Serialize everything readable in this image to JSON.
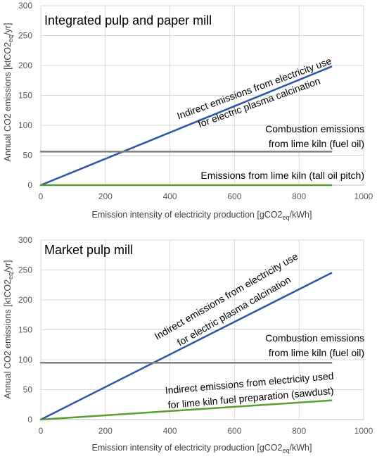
{
  "chart_data": [
    {
      "type": "line",
      "title": "Integrated pulp and paper mill",
      "xlabel_main": "Emission intensity of electricity production [gCO2",
      "xlabel_sub": "eq",
      "xlabel_tail": "/kWh]",
      "ylabel_main": "Annual CO2 emissions [ktCO2",
      "ylabel_sub": "eq",
      "ylabel_tail": "/yr]",
      "xlim": [
        0,
        1000
      ],
      "ylim": [
        0,
        300
      ],
      "xticks": [
        "0",
        "200",
        "400",
        "600",
        "800",
        "1000"
      ],
      "yticks": [
        "0",
        "50",
        "100",
        "150",
        "200",
        "250",
        "300"
      ],
      "grid": true,
      "series": [
        {
          "color": "#2f55a4",
          "x": [
            0,
            900
          ],
          "y": [
            0,
            198
          ]
        },
        {
          "color": "#7f7f7f",
          "x": [
            0,
            900
          ],
          "y": [
            56,
            56
          ]
        },
        {
          "color": "#5a9e32",
          "x": [
            0,
            900
          ],
          "y": [
            0,
            0
          ]
        }
      ],
      "annotations": {
        "electric": [
          "Indirect emissions from electricity use",
          "for electric plasma calcination"
        ],
        "fuel_oil": [
          "Combustion emissions",
          "from lime kiln (fuel oil)"
        ],
        "tall_oil": [
          "Emissions from lime kiln (tall oil pitch)"
        ]
      }
    },
    {
      "type": "line",
      "title": "Market pulp mill",
      "xlabel_main": "Emission intensity of electricity production [gCO2",
      "xlabel_sub": "eq",
      "xlabel_tail": "/kWh]",
      "ylabel_main": "Annual CO2 emissions [ktCO2",
      "ylabel_sub": "eq",
      "ylabel_tail": "/yr]",
      "xlim": [
        0,
        1000
      ],
      "ylim": [
        0,
        300
      ],
      "xticks": [
        "0",
        "200",
        "400",
        "600",
        "800",
        "1000"
      ],
      "yticks": [
        "0",
        "50",
        "100",
        "150",
        "200",
        "250",
        "300"
      ],
      "grid": true,
      "series": [
        {
          "color": "#2f55a4",
          "x": [
            0,
            900
          ],
          "y": [
            0,
            245
          ]
        },
        {
          "color": "#7f7f7f",
          "x": [
            0,
            900
          ],
          "y": [
            95,
            95
          ]
        },
        {
          "color": "#5a9e32",
          "x": [
            0,
            900
          ],
          "y": [
            0,
            32
          ]
        }
      ],
      "annotations": {
        "electric": [
          "Indirect emissions from electricity use",
          "for electric plasma calcination"
        ],
        "fuel_oil": [
          "Combustion emissions",
          "from lime kiln (fuel oil)"
        ],
        "sawdust": [
          "Indirect emissions from electricity used",
          "for lime kiln fuel preparation (sawdust)"
        ]
      }
    }
  ]
}
